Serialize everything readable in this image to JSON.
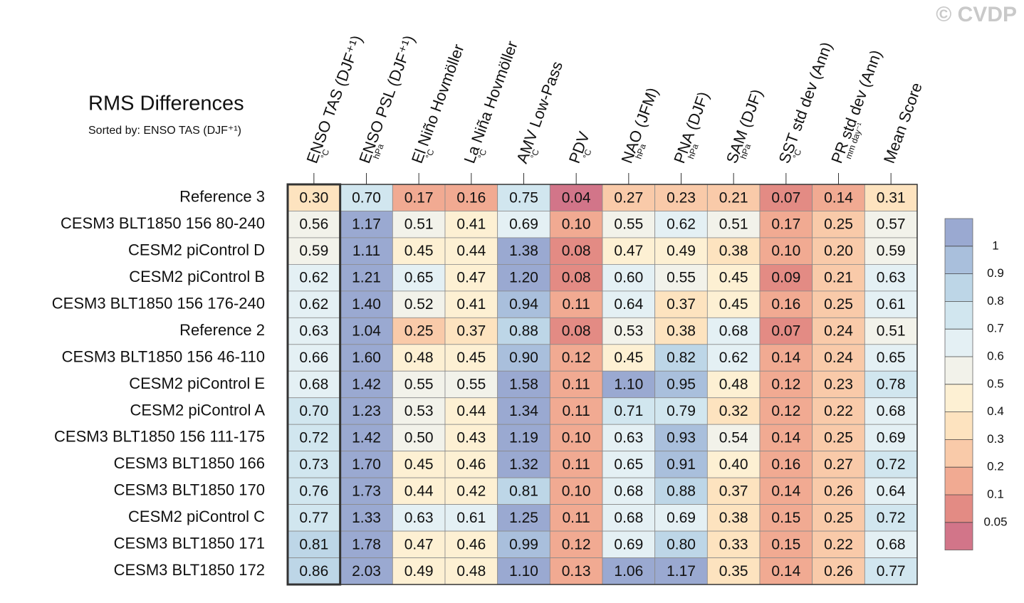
{
  "chart_data": {
    "type": "heatmap",
    "title": "RMS Differences",
    "subtitle": "Sorted by: ENSO TAS (DJF⁺¹)",
    "watermark": "© CVDP",
    "categories": [
      "ENSO TAS (DJF⁺¹)",
      "ENSO PSL (DJF⁺¹)",
      "El Niño Hovmöller",
      "La Niña Hovmöller",
      "AMV Low-Pass",
      "PDV",
      "NAO (JFM)",
      "PNA (DJF)",
      "SAM (DJF)",
      "SST std dev (Ann)",
      "PR std dev (Ann)",
      "Mean Score"
    ],
    "units": [
      "°C",
      "hPa",
      "°C",
      "°C",
      "°C",
      "°C",
      "hPa",
      "hPa",
      "hPa",
      "°C",
      "mm day⁻¹",
      null
    ],
    "highlight_column": 0,
    "series": [
      {
        "name": "Reference 3",
        "values": [
          0.3,
          0.7,
          0.17,
          0.16,
          0.75,
          0.04,
          0.27,
          0.23,
          0.21,
          0.07,
          0.14,
          0.31
        ],
        "value_labels": [
          "0.30",
          "0.70",
          "0.17",
          "0.16",
          "0.75",
          "0.04",
          "0.27",
          "0.23",
          "0.21",
          "0.07",
          "0.14",
          "0.31"
        ]
      },
      {
        "name": "CESM3 BLT1850 156 80-240",
        "values": [
          0.56,
          1.17,
          0.51,
          0.41,
          0.69,
          0.1,
          0.55,
          0.62,
          0.51,
          0.17,
          0.25,
          0.57
        ],
        "value_labels": [
          "0.56",
          "1.17",
          "0.51",
          "0.41",
          "0.69",
          "0.10",
          "0.55",
          "0.62",
          "0.51",
          "0.17",
          "0.25",
          "0.57"
        ]
      },
      {
        "name": "CESM2 piControl D",
        "values": [
          0.59,
          1.11,
          0.45,
          0.44,
          1.38,
          0.08,
          0.47,
          0.49,
          0.38,
          0.1,
          0.2,
          0.59
        ],
        "value_labels": [
          "0.59",
          "1.11",
          "0.45",
          "0.44",
          "1.38",
          "0.08",
          "0.47",
          "0.49",
          "0.38",
          "0.10",
          "0.20",
          "0.59"
        ]
      },
      {
        "name": "CESM2 piControl B",
        "values": [
          0.62,
          1.21,
          0.65,
          0.47,
          1.2,
          0.08,
          0.6,
          0.55,
          0.45,
          0.09,
          0.21,
          0.63
        ],
        "value_labels": [
          "0.62",
          "1.21",
          "0.65",
          "0.47",
          "1.20",
          "0.08",
          "0.60",
          "0.55",
          "0.45",
          "0.09",
          "0.21",
          "0.63"
        ]
      },
      {
        "name": "CESM3 BLT1850 156 176-240",
        "values": [
          0.62,
          1.4,
          0.52,
          0.41,
          0.94,
          0.11,
          0.64,
          0.37,
          0.45,
          0.16,
          0.25,
          0.61
        ],
        "value_labels": [
          "0.62",
          "1.40",
          "0.52",
          "0.41",
          "0.94",
          "0.11",
          "0.64",
          "0.37",
          "0.45",
          "0.16",
          "0.25",
          "0.61"
        ]
      },
      {
        "name": "Reference 2",
        "values": [
          0.63,
          1.04,
          0.25,
          0.37,
          0.88,
          0.08,
          0.53,
          0.38,
          0.68,
          0.07,
          0.24,
          0.51
        ],
        "value_labels": [
          "0.63",
          "1.04",
          "0.25",
          "0.37",
          "0.88",
          "0.08",
          "0.53",
          "0.38",
          "0.68",
          "0.07",
          "0.24",
          "0.51"
        ]
      },
      {
        "name": "CESM3 BLT1850 156 46-110",
        "values": [
          0.66,
          1.6,
          0.48,
          0.45,
          0.9,
          0.12,
          0.45,
          0.82,
          0.62,
          0.14,
          0.24,
          0.65
        ],
        "value_labels": [
          "0.66",
          "1.60",
          "0.48",
          "0.45",
          "0.90",
          "0.12",
          "0.45",
          "0.82",
          "0.62",
          "0.14",
          "0.24",
          "0.65"
        ]
      },
      {
        "name": "CESM2 piControl E",
        "values": [
          0.68,
          1.42,
          0.55,
          0.55,
          1.58,
          0.11,
          1.1,
          0.95,
          0.48,
          0.12,
          0.23,
          0.78
        ],
        "value_labels": [
          "0.68",
          "1.42",
          "0.55",
          "0.55",
          "1.58",
          "0.11",
          "1.10",
          "0.95",
          "0.48",
          "0.12",
          "0.23",
          "0.78"
        ]
      },
      {
        "name": "CESM2 piControl A",
        "values": [
          0.7,
          1.23,
          0.53,
          0.44,
          1.34,
          0.11,
          0.71,
          0.79,
          0.32,
          0.12,
          0.22,
          0.68
        ],
        "value_labels": [
          "0.70",
          "1.23",
          "0.53",
          "0.44",
          "1.34",
          "0.11",
          "0.71",
          "0.79",
          "0.32",
          "0.12",
          "0.22",
          "0.68"
        ]
      },
      {
        "name": "CESM3 BLT1850 156 111-175",
        "values": [
          0.72,
          1.42,
          0.5,
          0.43,
          1.19,
          0.1,
          0.63,
          0.93,
          0.54,
          0.14,
          0.25,
          0.69
        ],
        "value_labels": [
          "0.72",
          "1.42",
          "0.50",
          "0.43",
          "1.19",
          "0.10",
          "0.63",
          "0.93",
          "0.54",
          "0.14",
          "0.25",
          "0.69"
        ]
      },
      {
        "name": "CESM3 BLT1850 166",
        "values": [
          0.73,
          1.7,
          0.45,
          0.46,
          1.32,
          0.11,
          0.65,
          0.91,
          0.4,
          0.16,
          0.27,
          0.72
        ],
        "value_labels": [
          "0.73",
          "1.70",
          "0.45",
          "0.46",
          "1.32",
          "0.11",
          "0.65",
          "0.91",
          "0.40",
          "0.16",
          "0.27",
          "0.72"
        ]
      },
      {
        "name": "CESM3 BLT1850 170",
        "values": [
          0.76,
          1.73,
          0.44,
          0.42,
          0.81,
          0.1,
          0.68,
          0.88,
          0.37,
          0.14,
          0.26,
          0.64
        ],
        "value_labels": [
          "0.76",
          "1.73",
          "0.44",
          "0.42",
          "0.81",
          "0.10",
          "0.68",
          "0.88",
          "0.37",
          "0.14",
          "0.26",
          "0.64"
        ]
      },
      {
        "name": "CESM2 piControl C",
        "values": [
          0.77,
          1.33,
          0.63,
          0.61,
          1.25,
          0.11,
          0.68,
          0.69,
          0.38,
          0.15,
          0.25,
          0.72
        ],
        "value_labels": [
          "0.77",
          "1.33",
          "0.63",
          "0.61",
          "1.25",
          "0.11",
          "0.68",
          "0.69",
          "0.38",
          "0.15",
          "0.25",
          "0.72"
        ]
      },
      {
        "name": "CESM3 BLT1850 171",
        "values": [
          0.81,
          1.78,
          0.47,
          0.46,
          0.99,
          0.12,
          0.69,
          0.8,
          0.33,
          0.15,
          0.22,
          0.68
        ],
        "value_labels": [
          "0.81",
          "1.78",
          "0.47",
          "0.46",
          "0.99",
          "0.12",
          "0.69",
          "0.80",
          "0.33",
          "0.15",
          "0.22",
          "0.68"
        ]
      },
      {
        "name": "CESM3 BLT1850 172",
        "values": [
          0.86,
          2.03,
          0.49,
          0.48,
          1.1,
          0.13,
          1.06,
          1.17,
          0.35,
          0.14,
          0.26,
          0.77
        ],
        "value_labels": [
          "0.86",
          "2.03",
          "0.49",
          "0.48",
          "1.10",
          "0.13",
          "1.06",
          "1.17",
          "0.35",
          "0.14",
          "0.26",
          "0.77"
        ]
      }
    ],
    "cticks": [
      0.05,
      0.1,
      0.2,
      0.3,
      0.4,
      0.5,
      0.6,
      0.7,
      0.8,
      0.9,
      1
    ],
    "colors": [
      "#d27589",
      "#e38b84",
      "#f1aa92",
      "#f9caa9",
      "#fde3bf",
      "#fdf0d3",
      "#f2f2ea",
      "#e4f0f4",
      "#d1e6ef",
      "#bdd6e7",
      "#a9bfdc",
      "#9aa9d1"
    ]
  }
}
